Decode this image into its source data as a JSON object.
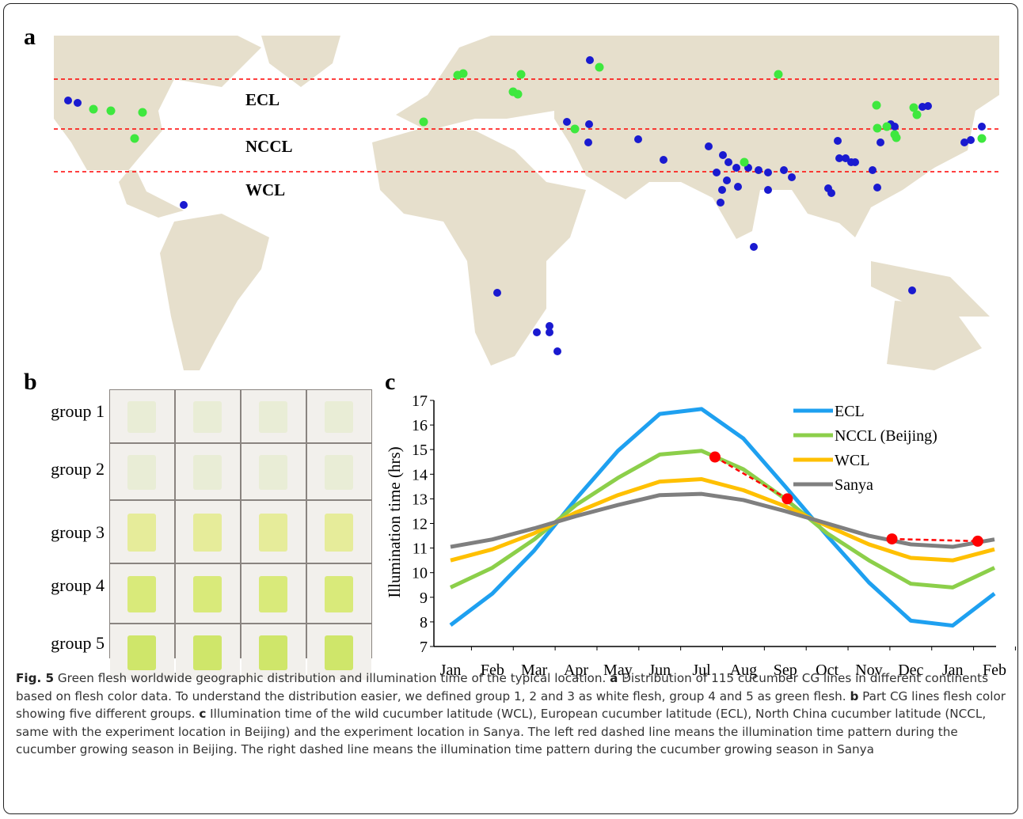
{
  "panels": {
    "a": "a",
    "b": "b",
    "c": "c"
  },
  "map": {
    "zones": [
      "ECL",
      "NCCL",
      "WCL"
    ]
  },
  "photos": {
    "groups": [
      "group 1",
      "group 2",
      "group 3",
      "group 4",
      "group 5"
    ]
  },
  "chart_data": {
    "type": "line",
    "y_label": "Illumination time (hrs)",
    "categories": [
      "Jan",
      "Feb",
      "Mar",
      "Apr",
      "May",
      "Jun",
      "Jul",
      "Aug",
      "Sep",
      "Oct",
      "Nov",
      "Dec",
      "Jan",
      "Feb"
    ],
    "ylim": [
      7,
      17
    ],
    "yticks": [
      7,
      8,
      9,
      10,
      11,
      12,
      13,
      14,
      15,
      16,
      17
    ],
    "legend": "top-right",
    "series": [
      {
        "name": "ECL",
        "color": "#1ea0f0",
        "values": [
          7.87,
          9.15,
          10.9,
          13.0,
          14.95,
          16.45,
          16.65,
          15.45,
          13.5,
          11.5,
          9.6,
          8.05,
          7.85,
          9.15
        ]
      },
      {
        "name": "NCCL (Beijing)",
        "color": "#8ccf4a",
        "values": [
          9.4,
          10.2,
          11.35,
          12.75,
          13.85,
          14.8,
          14.95,
          14.2,
          13.0,
          11.6,
          10.5,
          9.55,
          9.4,
          10.2
        ]
      },
      {
        "name": "WCL",
        "color": "#ffc000",
        "values": [
          10.5,
          10.95,
          11.6,
          12.45,
          13.15,
          13.7,
          13.8,
          13.35,
          12.7,
          11.9,
          11.15,
          10.6,
          10.5,
          10.95
        ]
      },
      {
        "name": "Sanya",
        "color": "#7f7f7f",
        "values": [
          11.05,
          11.35,
          11.8,
          12.3,
          12.75,
          13.15,
          13.2,
          12.95,
          12.5,
          12.0,
          11.5,
          11.15,
          11.05,
          11.35
        ]
      }
    ],
    "highlights": [
      {
        "color": "#ff0000",
        "x": [
          6.32,
          8.05
        ],
        "values": [
          14.7,
          13.0
        ]
      },
      {
        "color": "#ff0000",
        "x": [
          10.55,
          12.6
        ],
        "values": [
          11.37,
          11.28
        ]
      }
    ]
  },
  "caption": [
    "Fig. 5",
    "Green flesh worldwide geographic distribution and illumination time of the typical location.",
    "a",
    "Distribution of 115 cucumber CG lines in different continents based on flesh color data. To understand the distribution easier, we defined group 1, 2 and 3 as white flesh, group 4 and 5 as green flesh.",
    "b",
    "Part CG lines flesh color showing five different groups.",
    "c",
    "Illumination time of the wild cucumber latitude (WCL), European cucumber latitude (ECL), North China cucumber latitude (NCCL, same with the experiment location in Beijing) and the experiment location in Sanya. The left red dashed line means the illumination time pattern during the cucumber growing season in Beijing. The right dashed line means the illumination time pattern during the cucumber growing season in Sanya"
  ]
}
